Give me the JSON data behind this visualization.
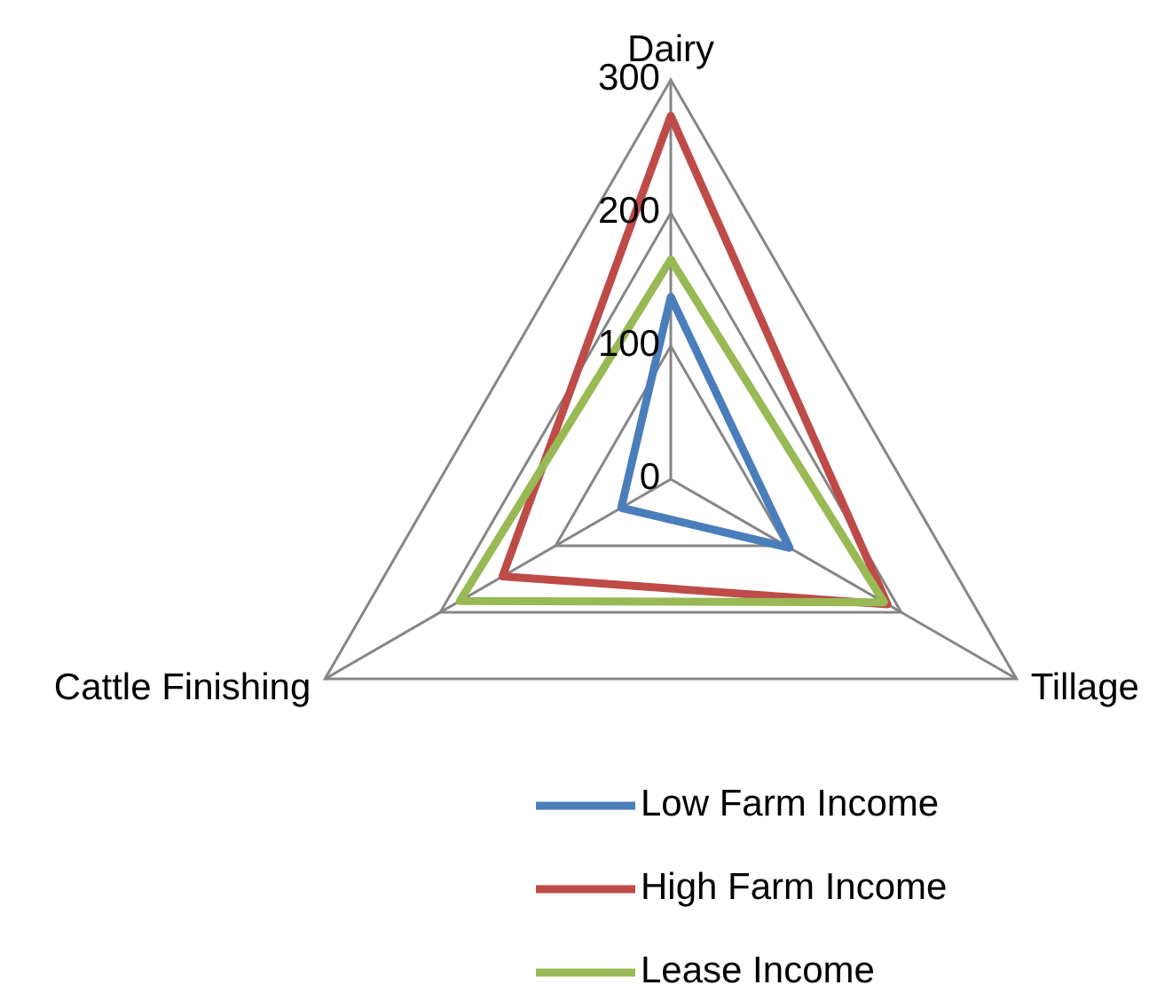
{
  "chart_data": {
    "type": "radar",
    "categories": [
      "Dairy",
      "Tillage",
      "Cattle Finishing"
    ],
    "series": [
      {
        "name": "Low Farm Income",
        "color": "#4a7ebb",
        "values": [
          137,
          103,
          43
        ]
      },
      {
        "name": "High Farm Income",
        "color": "#be4b48",
        "values": [
          273,
          188,
          146
        ]
      },
      {
        "name": "Lease Income",
        "color": "#98b954",
        "values": [
          165,
          185,
          183
        ]
      }
    ],
    "ylim": [
      0,
      300
    ],
    "yticks": [
      0,
      100,
      200,
      300
    ],
    "grid": true,
    "legend": "bottom"
  }
}
